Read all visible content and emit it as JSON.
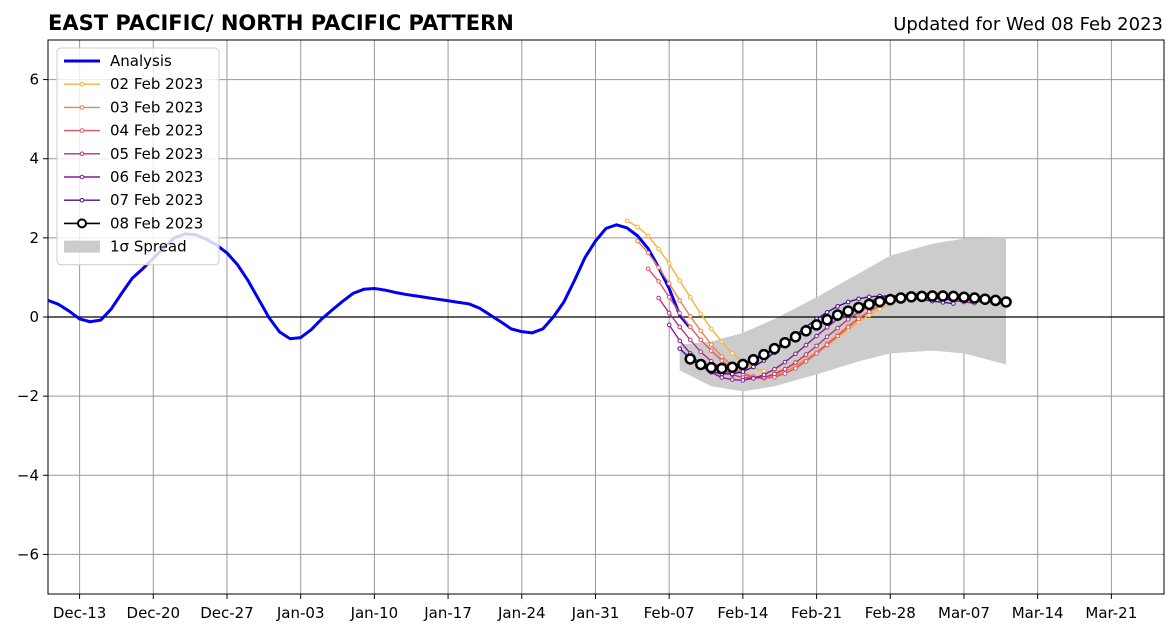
{
  "chart_data": {
    "type": "line",
    "title": "EAST PACIFIC/ NORTH PACIFIC PATTERN",
    "subtitle": "Updated for Wed 08 Feb 2023",
    "xlabel": "",
    "ylabel": "",
    "x_ticks": [
      "Dec-13",
      "Dec-20",
      "Dec-27",
      "Jan-03",
      "Jan-10",
      "Jan-17",
      "Jan-24",
      "Jan-31",
      "Feb-07",
      "Feb-14",
      "Feb-21",
      "Feb-28",
      "Mar-07",
      "Mar-14",
      "Mar-21"
    ],
    "y_ticks": [
      "6",
      "4",
      "2",
      "0",
      "−2",
      "−4",
      "−6"
    ],
    "ylim": [
      -7,
      7
    ],
    "xlim": [
      "2022-12-10",
      "2023-03-26"
    ],
    "grid": true,
    "zero_line": true,
    "legend_position": "upper-left",
    "analysis": {
      "name": "Analysis",
      "color": "#0000ee",
      "x_start": "2022-12-10",
      "values": [
        0.42,
        0.32,
        0.15,
        -0.05,
        -0.12,
        -0.08,
        0.2,
        0.6,
        0.98,
        1.22,
        1.48,
        1.75,
        2.0,
        2.1,
        2.08,
        1.97,
        1.82,
        1.62,
        1.32,
        0.92,
        0.45,
        -0.02,
        -0.38,
        -0.55,
        -0.52,
        -0.32,
        -0.05,
        0.18,
        0.4,
        0.6,
        0.7,
        0.72,
        0.68,
        0.62,
        0.57,
        0.53,
        0.49,
        0.45,
        0.41,
        0.37,
        0.33,
        0.22,
        0.05,
        -0.12,
        -0.3,
        -0.37,
        -0.4,
        -0.3,
        0.0,
        0.38,
        0.92,
        1.5,
        1.92,
        2.24,
        2.33,
        2.25,
        2.05,
        1.73,
        1.25,
        0.72,
        0.05,
        -0.28
      ]
    },
    "forecasts": [
      {
        "name": "02 Feb 2023",
        "color": "#f9b233",
        "x_start": "2023-02-03",
        "values": [
          2.43,
          2.28,
          2.05,
          1.72,
          1.35,
          0.92,
          0.5,
          0.08,
          -0.3,
          -0.62,
          -0.92,
          -1.12,
          -1.28,
          -1.37,
          -1.38,
          -1.32,
          -1.2,
          -1.06,
          -0.9,
          -0.72,
          -0.52,
          -0.32,
          -0.12,
          0.05,
          0.2,
          0.33,
          0.44,
          0.52,
          0.58,
          0.6,
          0.6,
          0.58,
          0.54,
          0.49,
          0.44,
          0.4,
          0.37
        ]
      },
      {
        "name": "03 Feb 2023",
        "color": "#f0804a",
        "x_start": "2023-02-04",
        "values": [
          1.92,
          1.62,
          1.25,
          0.85,
          0.42,
          0.02,
          -0.35,
          -0.7,
          -1.0,
          -1.22,
          -1.4,
          -1.5,
          -1.52,
          -1.48,
          -1.38,
          -1.25,
          -1.08,
          -0.88,
          -0.67,
          -0.45,
          -0.22,
          -0.02,
          0.15,
          0.3,
          0.42,
          0.51,
          0.57,
          0.6,
          0.6,
          0.58,
          0.54,
          0.49,
          0.44,
          0.4,
          0.37
        ]
      },
      {
        "name": "04 Feb 2023",
        "color": "#e0546a",
        "x_start": "2023-02-05",
        "values": [
          1.22,
          0.9,
          0.5,
          0.1,
          -0.25,
          -0.58,
          -0.85,
          -1.1,
          -1.3,
          -1.45,
          -1.53,
          -1.55,
          -1.52,
          -1.43,
          -1.3,
          -1.12,
          -0.92,
          -0.7,
          -0.48,
          -0.26,
          -0.05,
          0.13,
          0.28,
          0.4,
          0.5,
          0.56,
          0.59,
          0.6,
          0.58,
          0.54,
          0.49,
          0.44,
          0.4,
          0.37
        ]
      },
      {
        "name": "05 Feb 2023",
        "color": "#b83080",
        "x_start": "2023-02-06",
        "values": [
          0.48,
          0.1,
          -0.25,
          -0.58,
          -0.88,
          -1.12,
          -1.32,
          -1.46,
          -1.53,
          -1.55,
          -1.52,
          -1.44,
          -1.32,
          -1.15,
          -0.95,
          -0.73,
          -0.5,
          -0.28,
          -0.06,
          0.12,
          0.27,
          0.4,
          0.49,
          0.55,
          0.58,
          0.58,
          0.56,
          0.52,
          0.48,
          0.44,
          0.4,
          0.37
        ]
      },
      {
        "name": "06 Feb 2023",
        "color": "#8a1a9a",
        "x_start": "2023-02-07",
        "values": [
          -0.2,
          -0.6,
          -0.92,
          -1.2,
          -1.4,
          -1.53,
          -1.58,
          -1.6,
          -1.55,
          -1.46,
          -1.32,
          -1.14,
          -0.93,
          -0.71,
          -0.48,
          -0.26,
          -0.05,
          0.13,
          0.28,
          0.4,
          0.48,
          0.53,
          0.55,
          0.55,
          0.53,
          0.5,
          0.46,
          0.42,
          0.38,
          0.35
        ]
      },
      {
        "name": "07 Feb 2023",
        "color": "#4a0d8c",
        "x_start": "2023-02-08",
        "values": [
          -0.8,
          -1.05,
          -1.25,
          -1.38,
          -1.44,
          -1.44,
          -1.38,
          -1.26,
          -1.1,
          -0.9,
          -0.68,
          -0.46,
          -0.25,
          -0.05,
          0.12,
          0.27,
          0.38,
          0.46,
          0.51,
          0.53,
          0.53,
          0.51,
          0.48,
          0.44,
          0.4,
          0.37,
          0.34
        ]
      },
      {
        "name": "08 Feb 2023",
        "color": "#000000",
        "x_start": "2023-02-09",
        "values": [
          -1.06,
          -1.2,
          -1.28,
          -1.3,
          -1.27,
          -1.2,
          -1.08,
          -0.95,
          -0.8,
          -0.65,
          -0.5,
          -0.35,
          -0.2,
          -0.07,
          0.05,
          0.15,
          0.24,
          0.32,
          0.39,
          0.44,
          0.48,
          0.51,
          0.52,
          0.53,
          0.53,
          0.52,
          0.5,
          0.48,
          0.45,
          0.42,
          0.38
        ]
      }
    ],
    "spread": {
      "name": "1σ Spread",
      "color": "#cccccc",
      "x": [
        "2023-02-08",
        "2023-02-11",
        "2023-02-14",
        "2023-02-17",
        "2023-02-21",
        "2023-02-25",
        "2023-02-28",
        "2023-03-04",
        "2023-03-07",
        "2023-03-11"
      ],
      "upper": [
        -0.7,
        -0.62,
        -0.4,
        -0.05,
        0.5,
        1.1,
        1.55,
        1.85,
        1.98,
        2.0
      ],
      "lower": [
        -1.35,
        -1.75,
        -1.88,
        -1.75,
        -1.45,
        -1.12,
        -0.92,
        -0.85,
        -0.92,
        -1.2
      ]
    }
  }
}
